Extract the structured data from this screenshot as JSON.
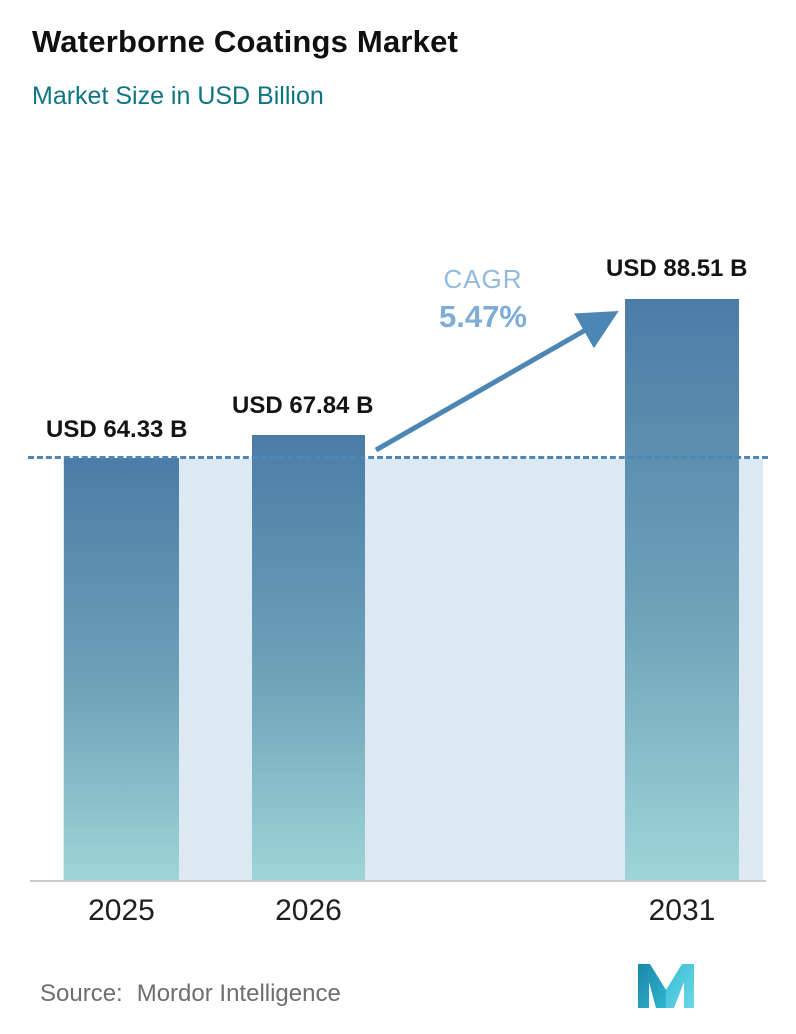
{
  "header": {
    "title": "Waterborne Coatings Market",
    "subtitle": "Market Size in USD Billion"
  },
  "chart_data": {
    "type": "bar",
    "categories": [
      "2025",
      "2026",
      "2031"
    ],
    "values": [
      64.33,
      67.84,
      88.51
    ],
    "bar_labels": [
      "USD 64.33 B",
      "USD 67.84 B",
      "USD 88.51 B"
    ],
    "title": "Waterborne Coatings Market",
    "subtitle": "Market Size in USD Billion",
    "xlabel": "",
    "ylabel": "Market Size in USD Billion",
    "ylim": [
      0,
      95
    ],
    "grid": false,
    "legend": "none",
    "dashed_reference_value": 64.33,
    "annotation": {
      "label": "CAGR",
      "value": "5.47%",
      "arrow": "from 2026 bar top to 2031 bar top"
    },
    "colors": {
      "bar_gradient_top": "#4b7ca7",
      "bar_gradient_bottom": "#9ed5d7",
      "band_fill": "#dce9f3",
      "dashed_line": "#4d87b5",
      "arrow": "#4b86b4",
      "cagr_label": "#93badb",
      "cagr_value": "#7fadd6",
      "subtitle_text": "#0e7582",
      "axis_line": "#cccccc"
    }
  },
  "footer": {
    "source_label": "Source:",
    "source_value": "Mordor Intelligence",
    "logo_name": "mordor-intelligence-logo"
  }
}
